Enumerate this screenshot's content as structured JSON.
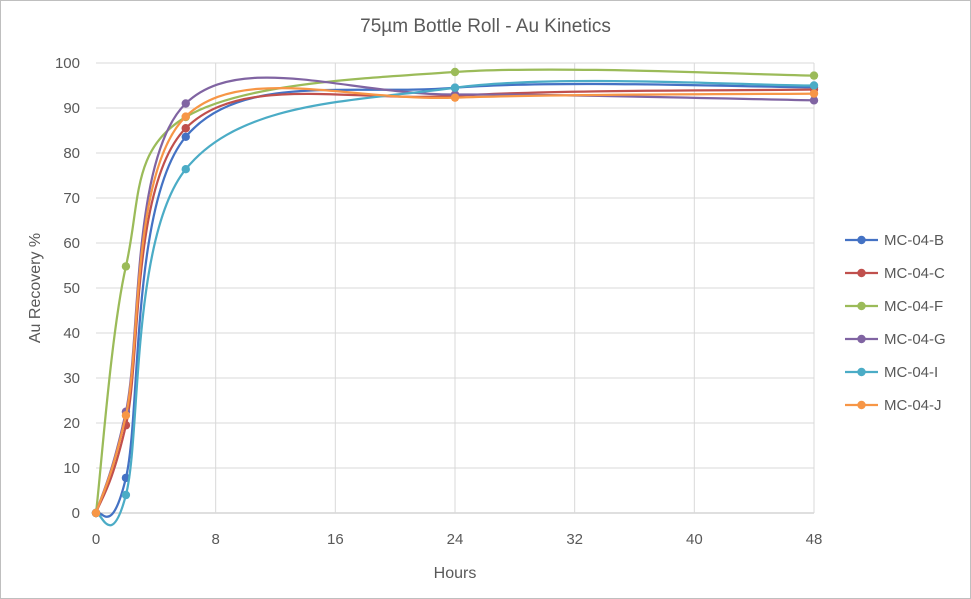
{
  "chart_data": {
    "type": "line",
    "title": "75µm Bottle Roll - Au Kinetics",
    "xlabel": "Hours",
    "ylabel": "Au Recovery %",
    "xlim": [
      0,
      48
    ],
    "ylim": [
      0,
      100
    ],
    "xticks": [
      0,
      8,
      16,
      24,
      32,
      40,
      48
    ],
    "yticks": [
      0,
      10,
      20,
      30,
      40,
      50,
      60,
      70,
      80,
      90,
      100
    ],
    "grid": true,
    "legend_position": "right",
    "smoothed": true,
    "x": [
      0,
      2,
      6,
      24,
      48
    ],
    "series": [
      {
        "name": "MC-04-B",
        "color": "#4472C4",
        "values": [
          0,
          7.8,
          83.6,
          94.5,
          94.6
        ]
      },
      {
        "name": "MC-04-C",
        "color": "#C0504D",
        "values": [
          0,
          19.5,
          85.5,
          92.7,
          94.1
        ]
      },
      {
        "name": "MC-04-F",
        "color": "#9BBB59",
        "values": [
          0,
          54.8,
          88.0,
          98.0,
          97.2
        ]
      },
      {
        "name": "MC-04-G",
        "color": "#8064A2",
        "values": [
          0,
          22.5,
          91.0,
          93.0,
          91.7
        ]
      },
      {
        "name": "MC-04-I",
        "color": "#4BACC6",
        "values": [
          0,
          4.0,
          76.4,
          94.5,
          95.0
        ]
      },
      {
        "name": "MC-04-J",
        "color": "#F79646",
        "values": [
          0,
          21.7,
          88.1,
          92.3,
          93.2
        ]
      }
    ]
  }
}
